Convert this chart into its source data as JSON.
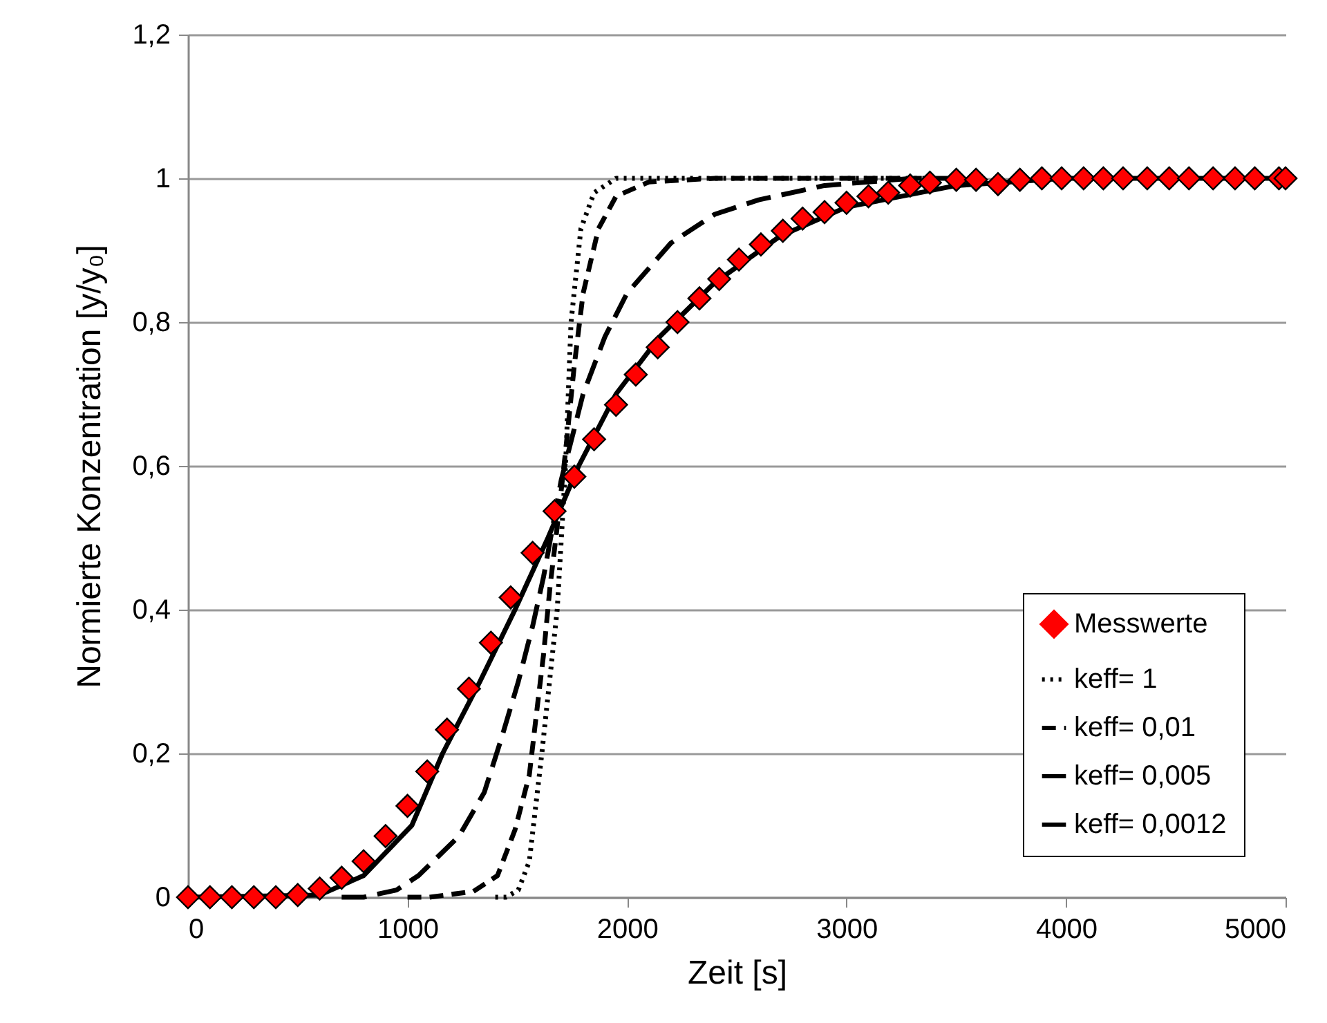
{
  "chart_data": {
    "type": "line",
    "xlabel": "Zeit [s]",
    "ylabel": "Normierte Konzentration [y/y₀]",
    "xlim": [
      0,
      5000
    ],
    "xticks": [
      0,
      1000,
      2000,
      3000,
      4000,
      5000
    ],
    "ylim": [
      0,
      1.2
    ],
    "yticks": [
      {
        "value": 0,
        "label": "0"
      },
      {
        "value": 0.2,
        "label": "0,2"
      },
      {
        "value": 0.4,
        "label": "0,4"
      },
      {
        "value": 0.6,
        "label": "0,6"
      },
      {
        "value": 0.8,
        "label": "0,8"
      },
      {
        "value": 1,
        "label": "1"
      },
      {
        "value": 1.2,
        "label": "1,2"
      }
    ],
    "grid": "y",
    "legend": "bottom right",
    "series": [
      {
        "name": "Messwerte",
        "type": "scatter",
        "marker": "diamond",
        "color": "#ff0000",
        "x": [
          0,
          100,
          200,
          300,
          400,
          500,
          600,
          700,
          800,
          900,
          1000,
          1090,
          1180,
          1280,
          1380,
          1470,
          1570,
          1670,
          1760,
          1850,
          1950,
          2040,
          2140,
          2230,
          2330,
          2420,
          2510,
          2610,
          2710,
          2800,
          2900,
          3000,
          3100,
          3190,
          3290,
          3380,
          3500,
          3590,
          3690,
          3790,
          3890,
          3980,
          4080,
          4170,
          4260,
          4370,
          4470,
          4560,
          4670,
          4770,
          4860,
          4970,
          5000
        ],
        "values": [
          0,
          0,
          0,
          0,
          0,
          0.003,
          0.012,
          0.027,
          0.05,
          0.085,
          0.127,
          0.175,
          0.233,
          0.29,
          0.354,
          0.417,
          0.479,
          0.537,
          0.585,
          0.637,
          0.685,
          0.727,
          0.765,
          0.8,
          0.833,
          0.86,
          0.887,
          0.908,
          0.927,
          0.944,
          0.953,
          0.966,
          0.975,
          0.98,
          0.99,
          0.994,
          0.998,
          0.998,
          0.992,
          0.998,
          1,
          1,
          1,
          1,
          1,
          1,
          1,
          1,
          1,
          1,
          1,
          1,
          1
        ]
      },
      {
        "name": "keff= 1",
        "line_style": "dotted",
        "color": "#000000",
        "x": [
          1400,
          1450,
          1505,
          1555,
          1612,
          1682,
          1720,
          1745,
          1790,
          1850,
          1950,
          3400
        ],
        "values": [
          0,
          0,
          0.01,
          0.05,
          0.2,
          0.4,
          0.6,
          0.8,
          0.93,
          0.98,
          1,
          1
        ]
      },
      {
        "name": "keff= 0,01",
        "line_style": "dashed",
        "color": "#000000",
        "x": [
          1000,
          1100,
          1300,
          1410,
          1490,
          1555,
          1587,
          1620,
          1650,
          1680,
          1720,
          1760,
          1800,
          1870,
          1950,
          2100,
          2400,
          3400
        ],
        "values": [
          0,
          0,
          0.008,
          0.03,
          0.094,
          0.17,
          0.254,
          0.338,
          0.434,
          0.51,
          0.62,
          0.74,
          0.84,
          0.93,
          0.975,
          0.995,
          1,
          1
        ]
      },
      {
        "name": "keff= 0,005",
        "line_style": "dashed",
        "color": "#000000",
        "x": [
          700,
          800,
          950,
          1050,
          1235,
          1350,
          1430,
          1505,
          1570,
          1620,
          1700,
          1800,
          1900,
          2000,
          2200,
          2400,
          2600,
          2900,
          3300,
          3500
        ],
        "values": [
          0,
          0,
          0.01,
          0.03,
          0.085,
          0.146,
          0.223,
          0.3,
          0.377,
          0.446,
          0.58,
          0.7,
          0.78,
          0.84,
          0.91,
          0.95,
          0.97,
          0.99,
          1,
          1
        ]
      },
      {
        "name": "keff= 0,0012",
        "line_style": "solid",
        "color": "#000000",
        "x": [
          0,
          600,
          800,
          1020,
          1160,
          1330,
          1490,
          1640,
          1780,
          1950,
          2150,
          2400,
          2700,
          3000,
          3500,
          4000,
          5000
        ],
        "values": [
          0,
          0.003,
          0.03,
          0.1,
          0.2,
          0.3,
          0.4,
          0.5,
          0.6,
          0.7,
          0.78,
          0.855,
          0.92,
          0.96,
          0.99,
          1,
          1
        ]
      }
    ]
  }
}
